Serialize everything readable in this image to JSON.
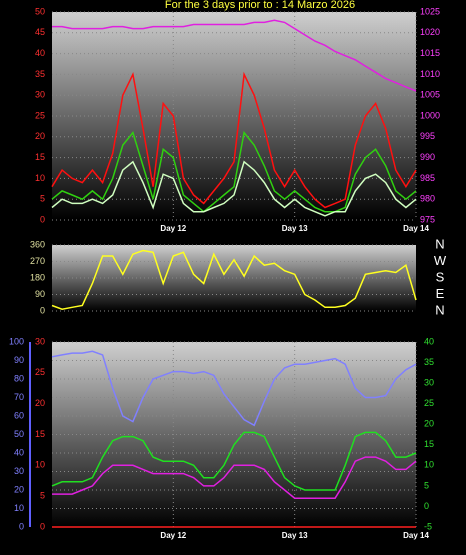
{
  "chart_data": [
    {
      "type": "line",
      "title": "For the 3 days prior to : 14 Marzo 2026",
      "title_color": "#ffff40",
      "x": [
        0,
        2,
        4,
        6,
        8,
        10,
        12,
        14,
        16,
        18,
        20,
        22,
        24,
        26,
        28,
        30,
        32,
        34,
        36,
        38,
        40,
        42,
        44,
        46,
        48,
        50,
        52,
        54,
        56,
        58,
        60,
        62,
        64,
        66,
        68,
        70,
        72
      ],
      "xlim": [
        0,
        72
      ],
      "xticks": [
        {
          "value": 24,
          "label": "Day 12"
        },
        {
          "value": 48,
          "label": "Day 13"
        },
        {
          "value": 72,
          "label": "Day 14"
        }
      ],
      "ylim": [
        0,
        50
      ],
      "yticks": [
        0,
        5,
        10,
        15,
        20,
        25,
        30,
        35,
        40,
        45,
        50
      ],
      "ytick_color": "#ff3030",
      "y2lim": [
        975,
        1025
      ],
      "y2ticks": [
        975,
        980,
        985,
        990,
        995,
        1000,
        1005,
        1010,
        1015,
        1020,
        1025
      ],
      "y2tick_color": "#ff40ff",
      "grid": true,
      "series": [
        {
          "color": "#ff1010",
          "values": [
            8,
            12,
            10,
            9,
            12,
            9,
            16,
            30,
            35,
            22,
            8,
            28,
            25,
            10,
            6,
            4,
            7,
            10,
            14,
            35,
            30,
            22,
            12,
            8,
            12,
            8,
            5,
            3,
            4,
            5,
            18,
            25,
            28,
            22,
            12,
            8,
            12
          ]
        },
        {
          "color": "#30d010",
          "values": [
            5,
            7,
            6,
            5,
            7,
            5,
            10,
            18,
            21,
            13,
            5,
            17,
            15,
            6,
            4,
            2,
            4,
            6,
            8,
            21,
            18,
            13,
            7,
            5,
            7,
            5,
            3,
            2,
            2,
            3,
            11,
            15,
            17,
            13,
            7,
            5,
            7
          ]
        },
        {
          "color": "#d0ffc0",
          "values": [
            3,
            5,
            4,
            4,
            5,
            4,
            6,
            12,
            14,
            9,
            3,
            11,
            10,
            4,
            2,
            2,
            3,
            4,
            6,
            14,
            12,
            9,
            5,
            3,
            5,
            3,
            2,
            1,
            2,
            2,
            7,
            10,
            11,
            9,
            5,
            3,
            5
          ]
        },
        {
          "color": "#e020e0",
          "axis": "y2",
          "values": [
            1021.5,
            1021.5,
            1021,
            1021,
            1021,
            1021,
            1021.5,
            1021.5,
            1021,
            1021,
            1021.5,
            1021.5,
            1021.5,
            1021.5,
            1022,
            1022,
            1022,
            1022,
            1022,
            1022,
            1022.5,
            1022.5,
            1023,
            1022.5,
            1021,
            1019.5,
            1018,
            1017,
            1015.5,
            1014.5,
            1013.5,
            1012,
            1010.5,
            1009,
            1008,
            1007,
            1006
          ]
        }
      ]
    },
    {
      "type": "line",
      "x": [
        0,
        2,
        4,
        6,
        8,
        10,
        12,
        14,
        16,
        18,
        20,
        22,
        24,
        26,
        28,
        30,
        32,
        34,
        36,
        38,
        40,
        42,
        44,
        46,
        48,
        50,
        52,
        54,
        56,
        58,
        60,
        62,
        64,
        66,
        68,
        70,
        72
      ],
      "xlim": [
        0,
        72
      ],
      "ylim": [
        0,
        360
      ],
      "yticks": [
        0,
        90,
        180,
        270,
        360
      ],
      "ytick_color": "#e0e0a0",
      "y2lim": [
        0,
        360
      ],
      "y2ticks": [
        {
          "value": 360,
          "label": "N"
        },
        {
          "value": 270,
          "label": "W"
        },
        {
          "value": 180,
          "label": "S"
        },
        {
          "value": 90,
          "label": "E"
        },
        {
          "value": 0,
          "label": "N"
        }
      ],
      "y2tick_color": "#ffffff",
      "grid": true,
      "series": [
        {
          "color": "#ffff20",
          "values": [
            30,
            10,
            20,
            30,
            150,
            300,
            300,
            200,
            310,
            330,
            320,
            150,
            300,
            320,
            200,
            150,
            310,
            200,
            280,
            190,
            300,
            250,
            260,
            220,
            200,
            90,
            60,
            20,
            20,
            30,
            70,
            200,
            210,
            220,
            210,
            250,
            60
          ]
        }
      ]
    },
    {
      "type": "line",
      "x": [
        0,
        2,
        4,
        6,
        8,
        10,
        12,
        14,
        16,
        18,
        20,
        22,
        24,
        26,
        28,
        30,
        32,
        34,
        36,
        38,
        40,
        42,
        44,
        46,
        48,
        50,
        52,
        54,
        56,
        58,
        60,
        62,
        64,
        66,
        68,
        70,
        72
      ],
      "xlim": [
        0,
        72
      ],
      "xticks": [
        {
          "value": 24,
          "label": "Day 12"
        },
        {
          "value": 48,
          "label": "Day 13"
        },
        {
          "value": 72,
          "label": "Day 14"
        }
      ],
      "ylim": [
        0,
        100
      ],
      "yticks": [
        0,
        10,
        20,
        30,
        40,
        50,
        60,
        70,
        80,
        90,
        100
      ],
      "ytick_color": "#8080ff",
      "y3lim": [
        0,
        30
      ],
      "y3ticks": [
        0,
        5,
        10,
        15,
        20,
        25,
        30
      ],
      "y3tick_color": "#ff3030",
      "y2lim": [
        -5,
        40
      ],
      "y2ticks": [
        -5,
        0,
        5,
        10,
        15,
        20,
        25,
        30,
        35,
        40
      ],
      "y2tick_color": "#30e030",
      "grid": true,
      "series": [
        {
          "color": "#8080ff",
          "values": [
            92,
            93,
            94,
            94,
            95,
            93,
            75,
            60,
            57,
            70,
            80,
            82,
            84,
            84,
            83,
            84,
            82,
            72,
            65,
            58,
            55,
            68,
            80,
            86,
            88,
            88,
            89,
            90,
            91,
            88,
            75,
            70,
            70,
            71,
            80,
            85,
            88
          ]
        },
        {
          "color": "#20e020",
          "axis": "y2",
          "values": [
            5,
            6,
            6,
            6,
            7,
            12,
            16,
            17,
            17,
            16,
            12,
            11,
            11,
            11,
            10,
            7,
            7,
            10,
            15,
            18,
            18,
            17,
            12,
            7,
            5,
            4,
            4,
            4,
            4,
            10,
            17,
            18,
            18,
            16,
            12,
            12,
            13
          ]
        },
        {
          "color": "#e020e0",
          "axis": "y2",
          "values": [
            3,
            3,
            3,
            4,
            5,
            8,
            10,
            10,
            10,
            9,
            8,
            8,
            8,
            8,
            7,
            5,
            5,
            7,
            10,
            10,
            10,
            9,
            6,
            4,
            2,
            2,
            2,
            2,
            2,
            6,
            11,
            12,
            12,
            11,
            9,
            9,
            11
          ]
        },
        {
          "color": "#ff2020",
          "axis": "y3",
          "values": [
            0,
            0,
            0,
            0,
            0,
            0,
            0,
            0,
            0,
            0,
            0,
            0,
            0,
            0,
            0,
            0,
            0,
            0,
            0,
            0,
            0,
            0,
            0,
            0,
            0,
            0,
            0,
            0,
            0,
            0,
            0,
            0,
            0,
            0,
            0,
            0,
            0
          ]
        }
      ]
    }
  ]
}
